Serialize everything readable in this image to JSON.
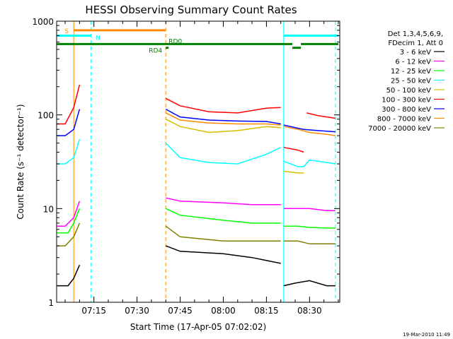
{
  "chart_data": {
    "type": "line",
    "title": "HESSI Observing Summary Count Rates",
    "xlabel": "Start Time (17-Apr-05 07:02:02)",
    "ylabel": "Count Rate (s⁻¹ detector⁻¹)",
    "y_scale": "log",
    "ylim": [
      1,
      1000
    ],
    "y_tick_labels": [
      "1",
      "10",
      "100",
      "1000"
    ],
    "x_tick_labels": [
      "07:15",
      "07:30",
      "07:45",
      "08:00",
      "08:15",
      "08:30"
    ],
    "xlim": [
      "07:02:02",
      "08:40:30"
    ],
    "legend_header": [
      "Det 1,3,4,5,6,9,",
      "FDecim 1, Att 0"
    ],
    "legend_position": "right",
    "series": [
      {
        "name": "3 - 6 keV",
        "color": "#000000",
        "segments": [
          {
            "x": [
              "07:02",
              "07:06",
              "07:08",
              "07:10"
            ],
            "y": [
              1.5,
              1.5,
              1.8,
              2.5
            ]
          },
          {
            "x": [
              "07:40",
              "07:45",
              "08:00",
              "08:10",
              "08:20"
            ],
            "y": [
              4,
              3.5,
              3.3,
              3,
              2.6
            ]
          },
          {
            "x": [
              "08:21",
              "08:25",
              "08:30",
              "08:36",
              "08:39"
            ],
            "y": [
              1.5,
              1.6,
              1.7,
              1.5,
              1.5
            ]
          }
        ]
      },
      {
        "name": "6 - 12 keV",
        "color": "#ff00ff",
        "segments": [
          {
            "x": [
              "07:02",
              "07:05",
              "07:08",
              "07:10"
            ],
            "y": [
              6.5,
              6.5,
              8,
              12
            ]
          },
          {
            "x": [
              "07:40",
              "07:45",
              "08:00",
              "08:10",
              "08:20"
            ],
            "y": [
              13,
              12,
              11.5,
              11,
              11
            ]
          },
          {
            "x": [
              "08:21",
              "08:26",
              "08:30",
              "08:36",
              "08:39"
            ],
            "y": [
              10,
              10,
              10,
              9.5,
              9.5
            ]
          }
        ]
      },
      {
        "name": "12 - 25 keV",
        "color": "#00ff00",
        "segments": [
          {
            "x": [
              "07:02",
              "07:06",
              "07:08",
              "07:10"
            ],
            "y": [
              5.5,
              5.5,
              7,
              10
            ]
          },
          {
            "x": [
              "07:40",
              "07:45",
              "08:00",
              "08:10",
              "08:20"
            ],
            "y": [
              10,
              8.5,
              7.5,
              7,
              7
            ]
          },
          {
            "x": [
              "08:21",
              "08:26",
              "08:30",
              "08:36",
              "08:39"
            ],
            "y": [
              6.5,
              6.5,
              6.3,
              6.2,
              6.2
            ]
          }
        ]
      },
      {
        "name": "25 - 50 keV",
        "color": "#00ffff",
        "segments": [
          {
            "x": [
              "07:02",
              "07:05",
              "07:08",
              "07:10"
            ],
            "y": [
              30,
              30,
              35,
              55
            ]
          },
          {
            "x": [
              "07:40",
              "07:45",
              "07:55",
              "08:05",
              "08:15",
              "08:20"
            ],
            "y": [
              50,
              35,
              31,
              30,
              38,
              45
            ]
          },
          {
            "x": [
              "08:21",
              "08:26",
              "08:28",
              "08:30",
              "08:36",
              "08:39"
            ],
            "y": [
              32,
              28,
              28,
              33,
              31,
              30
            ]
          }
        ]
      },
      {
        "name": "50 - 100 keV",
        "color": "#d4c000",
        "segments": [
          {
            "x": [
              "07:40",
              "07:45",
              "07:55",
              "08:05",
              "08:15",
              "08:20"
            ],
            "y": [
              90,
              75,
              65,
              68,
              75,
              73
            ]
          },
          {
            "x": [
              "08:21",
              "08:26",
              "08:28"
            ],
            "y": [
              25,
              24,
              24
            ]
          }
        ]
      },
      {
        "name": "100 - 300 keV",
        "color": "#ff0000",
        "segments": [
          {
            "x": [
              "07:02",
              "07:05",
              "07:08",
              "07:10"
            ],
            "y": [
              80,
              80,
              120,
              210
            ]
          },
          {
            "x": [
              "07:40",
              "07:45",
              "07:55",
              "08:05",
              "08:15",
              "08:20"
            ],
            "y": [
              150,
              125,
              108,
              105,
              118,
              120
            ]
          },
          {
            "x": [
              "08:21",
              "08:26",
              "08:28"
            ],
            "y": [
              45,
              42,
              40
            ]
          },
          {
            "x": [
              "08:29",
              "08:33",
              "08:39"
            ],
            "y": [
              105,
              98,
              92
            ]
          }
        ]
      },
      {
        "name": "300 - 800 keV",
        "color": "#0000ff",
        "segments": [
          {
            "x": [
              "07:02",
              "07:05",
              "07:08",
              "07:10"
            ],
            "y": [
              60,
              60,
              70,
              115
            ]
          },
          {
            "x": [
              "07:40",
              "07:45",
              "07:55",
              "08:05",
              "08:15",
              "08:20"
            ],
            "y": [
              115,
              95,
              88,
              86,
              85,
              80
            ]
          },
          {
            "x": [
              "08:21",
              "08:26",
              "08:28",
              "08:33",
              "08:39"
            ],
            "y": [
              78,
              72,
              70,
              68,
              66
            ]
          }
        ]
      },
      {
        "name": "800 - 7000 keV",
        "color": "#ff8c00",
        "segments": [
          {
            "x": [
              "07:40",
              "07:45",
              "07:55",
              "08:05",
              "08:15",
              "08:20"
            ],
            "y": [
              105,
              88,
              82,
              80,
              80,
              78
            ]
          },
          {
            "x": [
              "08:21",
              "08:26",
              "08:30",
              "08:36",
              "08:39"
            ],
            "y": [
              75,
              70,
              65,
              62,
              60
            ]
          }
        ]
      },
      {
        "name": "7000 - 20000 keV",
        "color": "#808000",
        "segments": [
          {
            "x": [
              "07:02",
              "07:05",
              "07:08",
              "07:10"
            ],
            "y": [
              4,
              4,
              5,
              7
            ]
          },
          {
            "x": [
              "07:40",
              "07:45",
              "08:00",
              "08:10",
              "08:20"
            ],
            "y": [
              6.5,
              5,
              4.5,
              4.5,
              4.5
            ]
          },
          {
            "x": [
              "08:21",
              "08:26",
              "08:30",
              "08:36",
              "08:39"
            ],
            "y": [
              4.5,
              4.5,
              4.2,
              4.2,
              4.2
            ]
          }
        ]
      }
    ],
    "flag_bars": [
      {
        "label": "S",
        "color": "#ff8c00",
        "x": [
          "07:08",
          "07:40"
        ],
        "y": 800
      },
      {
        "label": "N",
        "color": "#00ffff",
        "segments": [
          [
            "07:02",
            "07:14"
          ],
          [
            "08:21",
            "08:40"
          ]
        ],
        "y": 700
      },
      {
        "label": "RD0",
        "color": "#008000",
        "segments": [
          [
            "07:02",
            "08:24"
          ],
          [
            "08:27",
            "08:40"
          ]
        ],
        "y": 570
      },
      {
        "label": "RD4",
        "color": "#008000",
        "segments": [
          [
            "07:40",
            "07:41"
          ],
          [
            "08:24",
            "08:27"
          ]
        ],
        "y": 520
      }
    ],
    "vertical_markers": [
      {
        "x": "07:08",
        "color": "#ff8c00",
        "style": "solid"
      },
      {
        "x": "07:14",
        "color": "#00ffff",
        "style": "dashed"
      },
      {
        "x": "07:40",
        "color": "#ff8c00",
        "style": "dashed"
      },
      {
        "x": "08:21",
        "color": "#00ffff",
        "style": "solid"
      },
      {
        "x": "08:39",
        "color": "#00ffff",
        "style": "dashed"
      }
    ],
    "timestamp": "19-Mar-2010 11:49"
  }
}
